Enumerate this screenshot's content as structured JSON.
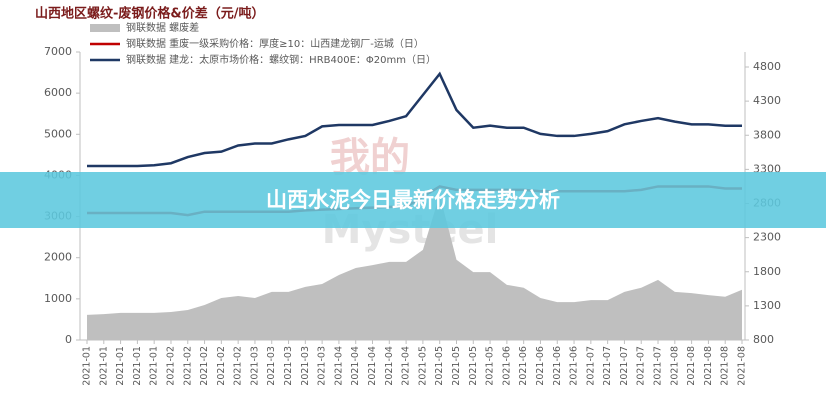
{
  "chart_data": {
    "type": "line",
    "title": "山西地区螺纹-废钢价格&价差（元/吨）",
    "categories": [
      "2021-01",
      "2021-01",
      "2021-01",
      "2021-01",
      "2021-01",
      "2021-02",
      "2021-02",
      "2021-02",
      "2021-02",
      "2021-02",
      "2021-03",
      "2021-03",
      "2021-03",
      "2021-03",
      "2021-03",
      "2021-04",
      "2021-04",
      "2021-04",
      "2021-04",
      "2021-04",
      "2021-05",
      "2021-05",
      "2021-05",
      "2021-05",
      "2021-05",
      "2021-06",
      "2021-06",
      "2021-06",
      "2021-06",
      "2021-06",
      "2021-07",
      "2021-07",
      "2021-07",
      "2021-07",
      "2021-07",
      "2021-08",
      "2021-08",
      "2021-08",
      "2021-08",
      "2021-08"
    ],
    "series": [
      {
        "name": "钢联数据 螺废差",
        "type": "area",
        "color": "#bfbfbf",
        "values": [
          610,
          630,
          660,
          660,
          660,
          680,
          730,
          850,
          1020,
          1070,
          1020,
          1170,
          1170,
          1290,
          1360,
          1580,
          1750,
          1820,
          1900,
          1900,
          2190,
          3530,
          1950,
          1650,
          1650,
          1340,
          1270,
          1020,
          920,
          920,
          970,
          970,
          1170,
          1270,
          1460,
          1170,
          1140,
          1090,
          1050,
          1220
        ]
      },
      {
        "name": "钢联数据 重废一级采购价格：厚度≥10：山西建龙钢厂-运城（日）",
        "type": "line",
        "axis": "y2",
        "color": "#c00000",
        "values": [
          2660,
          2660,
          2660,
          2660,
          2660,
          2660,
          2630,
          2680,
          2680,
          2680,
          2680,
          2680,
          2680,
          2700,
          2710,
          2720,
          2730,
          2740,
          2750,
          2750,
          2900,
          3050,
          3000,
          3000,
          3000,
          3000,
          3000,
          2980,
          2980,
          2980,
          2980,
          2980,
          2980,
          3000,
          3050,
          3050,
          3050,
          3050,
          3020,
          3020
        ]
      },
      {
        "name": "钢联数据 建龙：太原市场价格：螺纹钢：HRB400E：Φ20mm（日）",
        "type": "line",
        "axis": "y2",
        "color": "#1f3864",
        "values": [
          3350,
          3350,
          3350,
          3350,
          3360,
          3390,
          3480,
          3540,
          3560,
          3650,
          3680,
          3680,
          3740,
          3790,
          3930,
          3950,
          3950,
          3950,
          4010,
          4080,
          4390,
          4700,
          4170,
          3910,
          3940,
          3910,
          3910,
          3820,
          3790,
          3790,
          3820,
          3860,
          3960,
          4010,
          4050,
          4000,
          3960,
          3960,
          3940,
          3940
        ]
      }
    ],
    "ylim": [
      0,
      7000
    ],
    "yticks": [
      0,
      1000,
      2000,
      3000,
      4000,
      5000,
      6000,
      7000
    ],
    "y2lim": [
      800,
      4800
    ],
    "y2ticks": [
      800,
      1300,
      1800,
      2300,
      2800,
      3300,
      3800,
      4300,
      4800
    ],
    "grid": false
  },
  "watermark": [
    "我的",
    "Mysteel"
  ],
  "banner": {
    "title": "山西水泥今日最新价格走势分析"
  }
}
